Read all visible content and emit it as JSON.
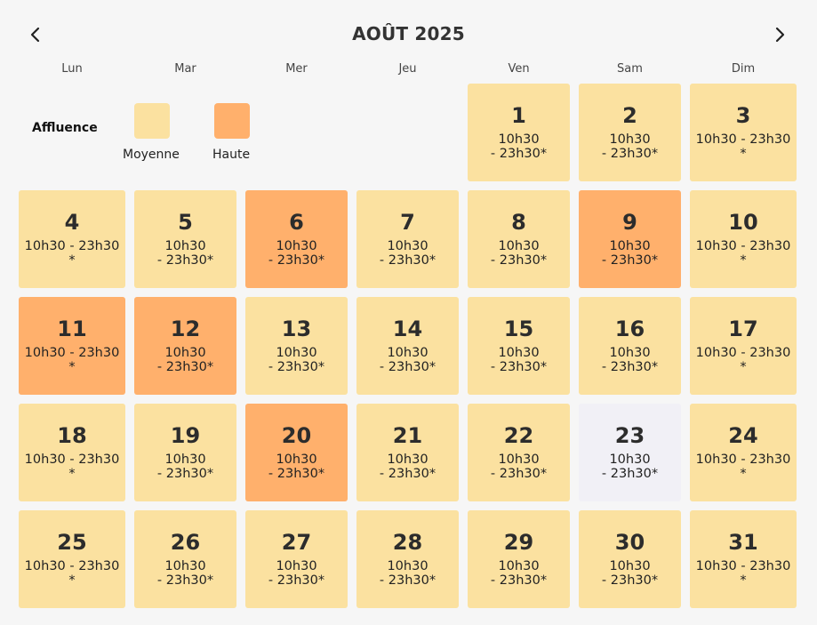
{
  "calendar": {
    "month_title": "AOÛT 2025",
    "prev_icon": "chevron-left-icon",
    "next_icon": "chevron-right-icon",
    "weekdays": [
      "Lun",
      "Mar",
      "Mer",
      "Jeu",
      "Ven",
      "Sam",
      "Dim"
    ]
  },
  "legend": {
    "title": "Affluence",
    "items": [
      {
        "label": "Moyenne",
        "color": "#fbe1a0"
      },
      {
        "label": "Haute",
        "color": "#ffb06c"
      }
    ]
  },
  "colors": {
    "moyenne": "#fbe1a0",
    "haute": "#ffb06c",
    "selected": "#f1f0f6"
  },
  "days": [
    {
      "num": "1",
      "hours": "10h30\n- 23h30*",
      "level": "moyenne"
    },
    {
      "num": "2",
      "hours": "10h30\n- 23h30*",
      "level": "moyenne"
    },
    {
      "num": "3",
      "hours": "10h30 - 23h30\n*",
      "level": "moyenne"
    },
    {
      "num": "4",
      "hours": "10h30 - 23h30\n*",
      "level": "moyenne"
    },
    {
      "num": "5",
      "hours": "10h30\n- 23h30*",
      "level": "moyenne"
    },
    {
      "num": "6",
      "hours": "10h30\n- 23h30*",
      "level": "haute"
    },
    {
      "num": "7",
      "hours": "10h30\n- 23h30*",
      "level": "moyenne"
    },
    {
      "num": "8",
      "hours": "10h30\n- 23h30*",
      "level": "moyenne"
    },
    {
      "num": "9",
      "hours": "10h30\n- 23h30*",
      "level": "haute"
    },
    {
      "num": "10",
      "hours": "10h30 - 23h30\n*",
      "level": "moyenne"
    },
    {
      "num": "11",
      "hours": "10h30 - 23h30\n*",
      "level": "haute"
    },
    {
      "num": "12",
      "hours": "10h30\n- 23h30*",
      "level": "haute"
    },
    {
      "num": "13",
      "hours": "10h30\n- 23h30*",
      "level": "moyenne"
    },
    {
      "num": "14",
      "hours": "10h30\n- 23h30*",
      "level": "moyenne"
    },
    {
      "num": "15",
      "hours": "10h30\n- 23h30*",
      "level": "moyenne"
    },
    {
      "num": "16",
      "hours": "10h30\n- 23h30*",
      "level": "moyenne"
    },
    {
      "num": "17",
      "hours": "10h30 - 23h30\n*",
      "level": "moyenne"
    },
    {
      "num": "18",
      "hours": "10h30 - 23h30\n*",
      "level": "moyenne"
    },
    {
      "num": "19",
      "hours": "10h30\n- 23h30*",
      "level": "moyenne"
    },
    {
      "num": "20",
      "hours": "10h30\n- 23h30*",
      "level": "haute"
    },
    {
      "num": "21",
      "hours": "10h30\n- 23h30*",
      "level": "moyenne"
    },
    {
      "num": "22",
      "hours": "10h30\n- 23h30*",
      "level": "moyenne"
    },
    {
      "num": "23",
      "hours": "10h30\n- 23h30*",
      "level": "selected"
    },
    {
      "num": "24",
      "hours": "10h30 - 23h30\n*",
      "level": "moyenne"
    },
    {
      "num": "25",
      "hours": "10h30 - 23h30\n*",
      "level": "moyenne"
    },
    {
      "num": "26",
      "hours": "10h30\n- 23h30*",
      "level": "moyenne"
    },
    {
      "num": "27",
      "hours": "10h30\n- 23h30*",
      "level": "moyenne"
    },
    {
      "num": "28",
      "hours": "10h30\n- 23h30*",
      "level": "moyenne"
    },
    {
      "num": "29",
      "hours": "10h30\n- 23h30*",
      "level": "moyenne"
    },
    {
      "num": "30",
      "hours": "10h30\n- 23h30*",
      "level": "moyenne"
    },
    {
      "num": "31",
      "hours": "10h30 - 23h30\n*",
      "level": "moyenne"
    }
  ]
}
